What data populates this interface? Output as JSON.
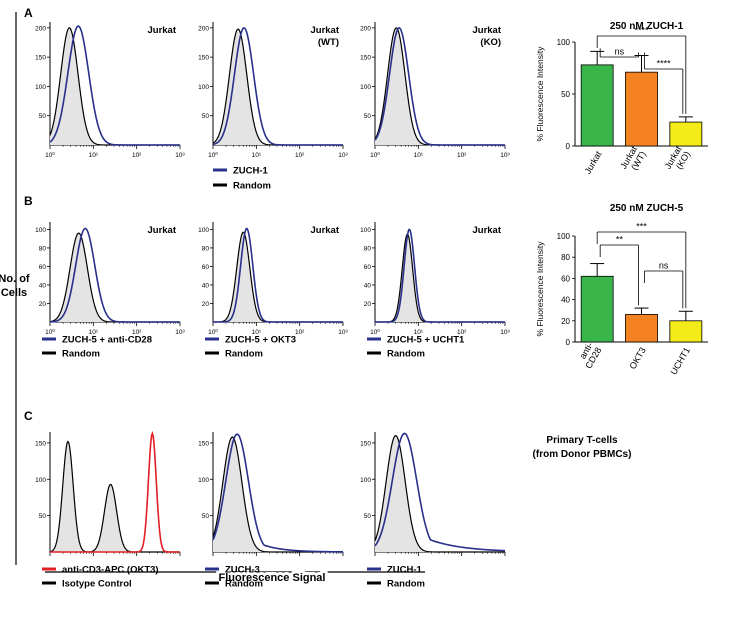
{
  "figure": {
    "y_axis_label": [
      "No. of",
      "Cells"
    ],
    "x_axis_label": "Fluorescence Signal",
    "colors": {
      "sample": "#27308a",
      "reference": "#000000",
      "red": "#e31e24",
      "fill": "#e4e4e4",
      "green": "#3ab54a",
      "orange": "#f58220",
      "yellow": "#f3ec19"
    }
  },
  "panels": [
    {
      "letter": "A",
      "histograms": [
        {
          "label": [
            "Jurkat"
          ]
        },
        {
          "label": [
            "Jurkat",
            "(WT)"
          ]
        },
        {
          "label": [
            "Jurkat",
            "(KO)"
          ]
        }
      ],
      "legend": [
        {
          "text": "ZUCH-1",
          "color": "#27308a"
        },
        {
          "text": "Random",
          "color": "#000000"
        }
      ]
    },
    {
      "letter": "B",
      "histograms": [
        {
          "label": [
            "Jurkat"
          ],
          "legend": [
            {
              "text": "ZUCH-5 + anti-CD28",
              "color": "#27308a"
            },
            {
              "text": "Random",
              "color": "#000000"
            }
          ]
        },
        {
          "label": [
            "Jurkat"
          ],
          "legend": [
            {
              "text": "ZUCH-5 + OKT3",
              "color": "#27308a"
            },
            {
              "text": "Random",
              "color": "#000000"
            }
          ]
        },
        {
          "label": [
            "Jurkat"
          ],
          "legend": [
            {
              "text": "ZUCH-5 + UCHT1",
              "color": "#27308a"
            },
            {
              "text": "Random",
              "color": "#000000"
            }
          ]
        }
      ]
    },
    {
      "letter": "C",
      "side_label": [
        "Primary T-cells",
        "(from Donor PBMCs)"
      ],
      "histograms": [
        {
          "legend": [
            {
              "text": "anti-CD3-APC (OKT3)",
              "color": "#e31e24"
            },
            {
              "text": "Isotype Control",
              "color": "#000000"
            }
          ]
        },
        {
          "legend": [
            {
              "text": "ZUCH-3",
              "color": "#27308a"
            },
            {
              "text": "Random",
              "color": "#000000"
            }
          ]
        },
        {
          "legend": [
            {
              "text": "ZUCH-1",
              "color": "#27308a"
            },
            {
              "text": "Random",
              "color": "#000000"
            }
          ]
        }
      ]
    }
  ],
  "chart_data": [
    {
      "type": "area",
      "panel": "A",
      "x_scale": "log",
      "xlim": [
        1,
        1000
      ],
      "ylim": [
        0,
        210
      ],
      "yticks": [
        50,
        100,
        150,
        200
      ],
      "xticks": [
        "10⁰",
        "10¹",
        "10²",
        "10³"
      ],
      "series": [
        {
          "name": "ZUCH-1",
          "color": "#27308a",
          "peak_x": 4.5,
          "peak_y": 203,
          "width": 0.24
        },
        {
          "name": "Random",
          "color": "#000000",
          "fill": "#e4e4e4",
          "peak_x": 2.8,
          "peak_y": 200,
          "width": 0.2
        }
      ]
    },
    {
      "type": "area",
      "panel": "A",
      "x_scale": "log",
      "xlim": [
        1,
        1000
      ],
      "ylim": [
        0,
        210
      ],
      "yticks": [
        50,
        100,
        150,
        200
      ],
      "xticks": [
        "10⁰",
        "10¹",
        "10²",
        "10³"
      ],
      "series": [
        {
          "name": "ZUCH-1",
          "color": "#27308a",
          "peak_x": 5.2,
          "peak_y": 200,
          "width": 0.22
        },
        {
          "name": "Random",
          "color": "#000000",
          "fill": "#e4e4e4",
          "peak_x": 3.8,
          "peak_y": 198,
          "width": 0.2
        }
      ]
    },
    {
      "type": "area",
      "panel": "A",
      "x_scale": "log",
      "xlim": [
        1,
        1000
      ],
      "ylim": [
        0,
        210
      ],
      "yticks": [
        50,
        100,
        150,
        200
      ],
      "xticks": [
        "10⁰",
        "10¹",
        "10²",
        "10³"
      ],
      "series": [
        {
          "name": "ZUCH-1",
          "color": "#27308a",
          "peak_x": 3.6,
          "peak_y": 200,
          "width": 0.22
        },
        {
          "name": "Random",
          "color": "#000000",
          "fill": "#e4e4e4",
          "peak_x": 3.1,
          "peak_y": 200,
          "width": 0.2
        }
      ]
    },
    {
      "type": "bar",
      "panel": "A",
      "title": "250 nM ZUCH-1",
      "ylabel": "% Fluorescence Intensity",
      "ylim": [
        0,
        100
      ],
      "yticks": [
        0,
        50,
        100
      ],
      "categories": [
        [
          "Jurkat"
        ],
        [
          "Jurkat",
          "(WT)"
        ],
        [
          "Jurkat",
          "(KO)"
        ]
      ],
      "values": [
        78,
        71,
        23
      ],
      "errors": [
        13,
        16,
        5
      ],
      "colors": [
        "#3ab54a",
        "#f58220",
        "#f3ec19"
      ],
      "significance": [
        {
          "a": 0,
          "b": 2,
          "label": "****"
        },
        {
          "a": 0,
          "b": 1,
          "label": "ns"
        },
        {
          "a": 1,
          "b": 2,
          "label": "****"
        }
      ]
    },
    {
      "type": "area",
      "panel": "B",
      "x_scale": "log",
      "xlim": [
        1,
        1000
      ],
      "ylim": [
        0,
        108
      ],
      "yticks": [
        20,
        40,
        60,
        80,
        100
      ],
      "xticks": [
        "10⁰",
        "10¹",
        "10²",
        "10³"
      ],
      "series": [
        {
          "name": "ZUCH-5 + anti-CD28",
          "color": "#27308a",
          "peak_x": 6.5,
          "peak_y": 101,
          "width": 0.22
        },
        {
          "name": "Random",
          "color": "#000000",
          "fill": "#e4e4e4",
          "peak_x": 4.6,
          "peak_y": 96,
          "width": 0.2
        }
      ]
    },
    {
      "type": "area",
      "panel": "B",
      "x_scale": "log",
      "xlim": [
        1,
        1000
      ],
      "ylim": [
        0,
        108
      ],
      "yticks": [
        20,
        40,
        60,
        80,
        100
      ],
      "xticks": [
        "10⁰",
        "10¹",
        "10²",
        "10³"
      ],
      "series": [
        {
          "name": "ZUCH-5 + OKT3",
          "color": "#27308a",
          "peak_x": 6,
          "peak_y": 101,
          "width": 0.14
        },
        {
          "name": "Random",
          "color": "#000000",
          "fill": "#e4e4e4",
          "peak_x": 5,
          "peak_y": 97,
          "width": 0.15
        }
      ]
    },
    {
      "type": "area",
      "panel": "B",
      "x_scale": "log",
      "xlim": [
        1,
        1000
      ],
      "ylim": [
        0,
        108
      ],
      "yticks": [
        20,
        40,
        60,
        80,
        100
      ],
      "xticks": [
        "10⁰",
        "10¹",
        "10²",
        "10³"
      ],
      "series": [
        {
          "name": "ZUCH-5 + UCHT1",
          "color": "#27308a",
          "peak_x": 6.2,
          "peak_y": 100,
          "width": 0.12
        },
        {
          "name": "Random",
          "color": "#000000",
          "fill": "#e4e4e4",
          "peak_x": 5.6,
          "peak_y": 95,
          "width": 0.12
        }
      ]
    },
    {
      "type": "bar",
      "panel": "B",
      "title": "250 nM ZUCH-5",
      "ylabel": "% Fluorescence Intensity",
      "ylim": [
        0,
        100
      ],
      "yticks": [
        0,
        20,
        40,
        60,
        80,
        100
      ],
      "categories": [
        [
          "anti-",
          "CD28"
        ],
        [
          "OKT3"
        ],
        [
          "UCHT1"
        ]
      ],
      "values": [
        62,
        26,
        20
      ],
      "errors": [
        12,
        6,
        9
      ],
      "colors": [
        "#3ab54a",
        "#f58220",
        "#f3ec19"
      ],
      "significance": [
        {
          "a": 0,
          "b": 2,
          "label": "***"
        },
        {
          "a": 0,
          "b": 1,
          "label": "**"
        },
        {
          "a": 1,
          "b": 2,
          "label": "ns"
        }
      ]
    },
    {
      "type": "area",
      "panel": "C",
      "x_scale": "log",
      "xlim": [
        1,
        1000
      ],
      "ylim": [
        0,
        165
      ],
      "yticks": [
        50,
        100,
        150
      ],
      "xticks": [],
      "series": [
        {
          "name": "anti-CD3-APC (OKT3)",
          "color": "#e31e24",
          "peak_x": 230,
          "peak_y": 163,
          "width": 0.09
        },
        {
          "name": "Isotype Control",
          "color": "#000000",
          "fill": "#e4e4e4",
          "peaks": [
            {
              "peak_x": 2.6,
              "peak_y": 152,
              "width": 0.12
            },
            {
              "peak_x": 25,
              "peak_y": 93,
              "width": 0.14
            }
          ]
        }
      ]
    },
    {
      "type": "area",
      "panel": "C",
      "x_scale": "log",
      "xlim": [
        1,
        1000
      ],
      "ylim": [
        0,
        165
      ],
      "yticks": [
        50,
        100,
        150
      ],
      "xticks": [],
      "series": [
        {
          "name": "ZUCH-3",
          "color": "#27308a",
          "peak_x": 3.6,
          "peak_y": 162,
          "width": 0.26,
          "tail": 0.18
        },
        {
          "name": "Random",
          "color": "#000000",
          "fill": "#e4e4e4",
          "peak_x": 2.8,
          "peak_y": 158,
          "width": 0.22
        }
      ]
    },
    {
      "type": "area",
      "panel": "C",
      "x_scale": "log",
      "xlim": [
        1,
        1000
      ],
      "ylim": [
        0,
        165
      ],
      "yticks": [
        50,
        100,
        150
      ],
      "xticks": [],
      "series": [
        {
          "name": "ZUCH-1",
          "color": "#27308a",
          "peak_x": 4.8,
          "peak_y": 163,
          "width": 0.28,
          "tail": 0.3
        },
        {
          "name": "Random",
          "color": "#000000",
          "fill": "#e4e4e4",
          "peak_x": 3,
          "peak_y": 160,
          "width": 0.22
        }
      ]
    }
  ]
}
